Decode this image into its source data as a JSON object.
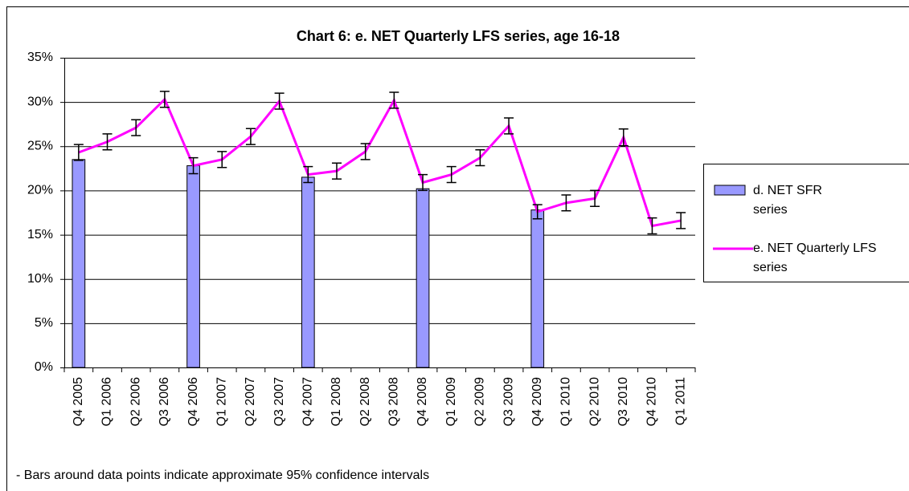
{
  "chart_data": {
    "type": "bar_line",
    "title": "Chart 6: e. NET Quarterly LFS series, age 16-18",
    "footnote": "- Bars around data points indicate approximate 95% confidence intervals",
    "categories": [
      "Q4 2005",
      "Q1 2006",
      "Q2 2006",
      "Q3 2006",
      "Q4 2006",
      "Q1 2007",
      "Q2 2007",
      "Q3 2007",
      "Q4 2007",
      "Q1 2008",
      "Q2 2008",
      "Q3 2008",
      "Q4 2008",
      "Q1 2009",
      "Q2 2009",
      "Q3 2009",
      "Q4 2009",
      "Q1 2010",
      "Q2 2010",
      "Q3 2010",
      "Q4 2010",
      "Q1 2011"
    ],
    "series": [
      {
        "name": "d. NET SFR series",
        "type": "bar",
        "color": "#9999ff",
        "values": [
          23.5,
          null,
          null,
          null,
          22.8,
          null,
          null,
          null,
          21.5,
          null,
          null,
          null,
          20.2,
          null,
          null,
          null,
          17.8,
          null,
          null,
          null,
          null,
          null
        ]
      },
      {
        "name": "e. NET Quarterly LFS series",
        "type": "line",
        "color": "#ff00ff",
        "values": [
          24.3,
          25.5,
          27.1,
          30.3,
          22.8,
          23.5,
          26.1,
          30.1,
          21.8,
          22.2,
          24.4,
          30.2,
          20.9,
          21.8,
          23.7,
          27.3,
          17.6,
          18.6,
          19.1,
          26.0,
          16.0,
          16.6
        ],
        "errors": [
          0.9,
          0.9,
          0.9,
          0.9,
          0.9,
          0.9,
          0.9,
          0.9,
          0.9,
          0.9,
          0.9,
          0.9,
          0.9,
          0.9,
          0.9,
          0.9,
          0.8,
          0.9,
          0.9,
          0.95,
          0.9,
          0.9
        ]
      }
    ],
    "ylim": [
      0,
      35
    ],
    "yticks": [
      {
        "value": 0,
        "label": "0%"
      },
      {
        "value": 5,
        "label": "5%"
      },
      {
        "value": 10,
        "label": "10%"
      },
      {
        "value": 15,
        "label": "15%"
      },
      {
        "value": 20,
        "label": "20%"
      },
      {
        "value": 25,
        "label": "25%"
      },
      {
        "value": 30,
        "label": "30%"
      },
      {
        "value": 35,
        "label": "35%"
      }
    ],
    "grid": true,
    "legend": "right"
  }
}
